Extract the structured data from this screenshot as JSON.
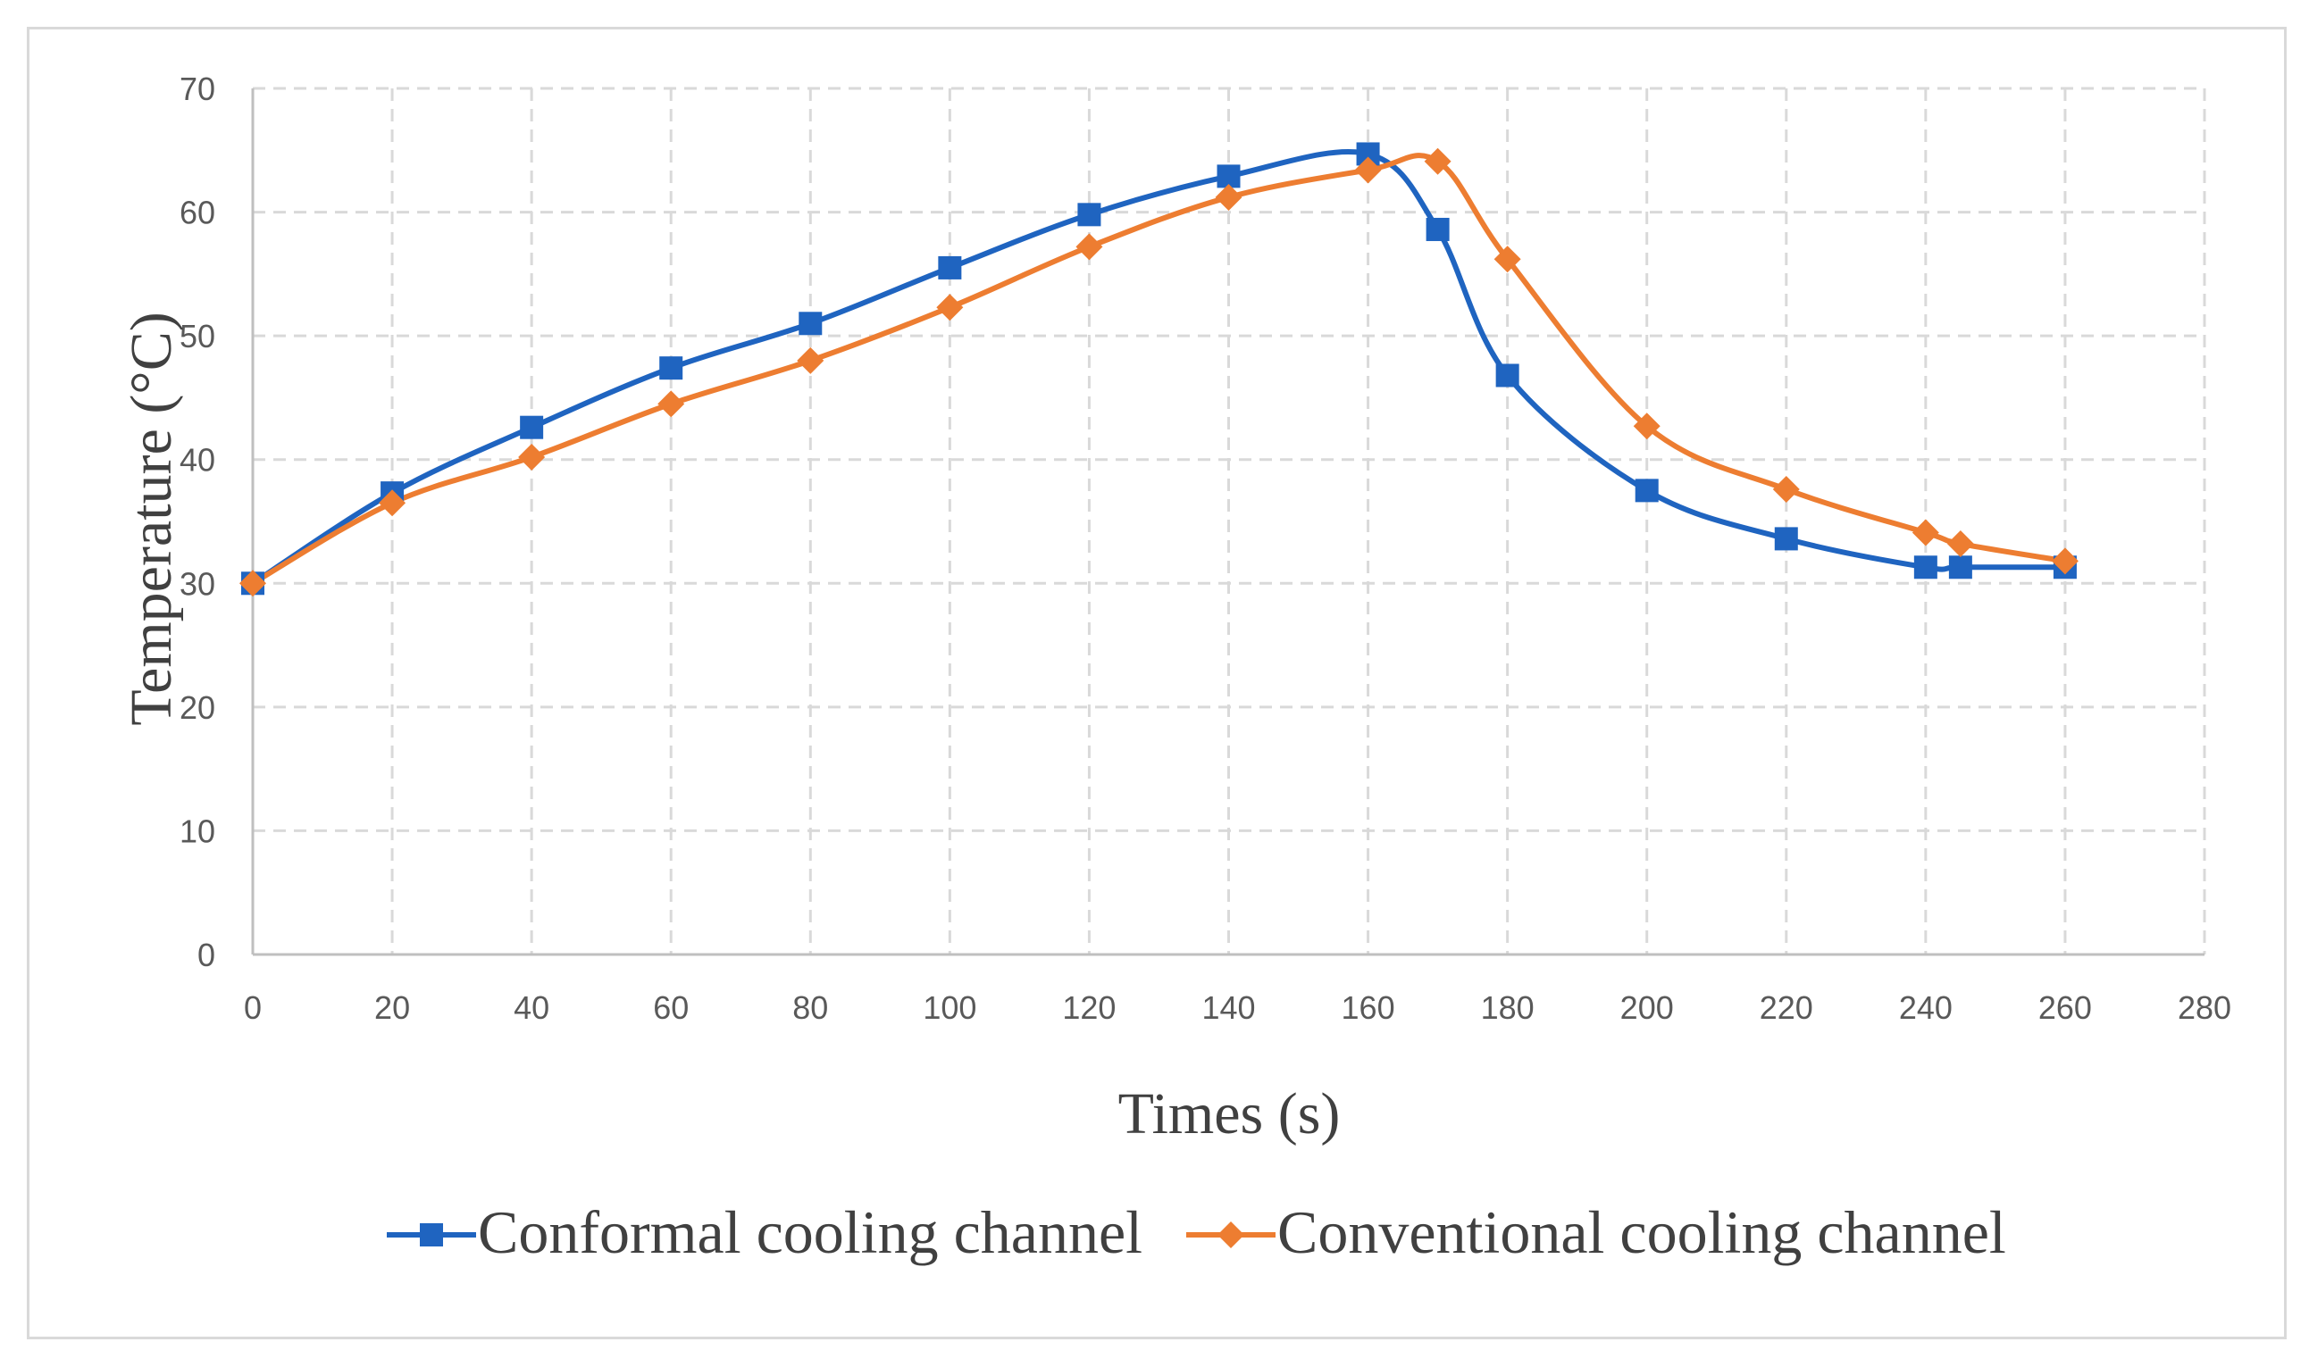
{
  "chart_data": {
    "type": "line",
    "title": "",
    "xlabel": "Times (s)",
    "ylabel": "Temperature (°C)",
    "xlim": [
      0,
      280
    ],
    "ylim": [
      0,
      70
    ],
    "xticks": [
      0,
      20,
      40,
      60,
      80,
      100,
      120,
      140,
      160,
      180,
      200,
      220,
      240,
      260,
      280
    ],
    "yticks": [
      0,
      10,
      20,
      30,
      40,
      50,
      60,
      70
    ],
    "grid": true,
    "legend_position": "bottom",
    "series": [
      {
        "name": "Conformal cooling channel",
        "color": "#1f64c0",
        "marker": "square",
        "x": [
          0,
          20,
          40,
          60,
          80,
          100,
          120,
          140,
          160,
          170,
          180,
          200,
          220,
          240,
          245,
          260
        ],
        "values": [
          30,
          37.3,
          42.6,
          47.4,
          51,
          55.5,
          59.8,
          62.9,
          64.7,
          58.6,
          46.8,
          37.5,
          33.6,
          31.3,
          31.3,
          31.3
        ]
      },
      {
        "name": "Conventional cooling channel",
        "color": "#ed7d31",
        "marker": "diamond",
        "x": [
          0,
          20,
          40,
          60,
          80,
          100,
          120,
          140,
          160,
          170,
          180,
          200,
          220,
          240,
          245,
          260
        ],
        "values": [
          30,
          36.5,
          40.2,
          44.5,
          48,
          52.3,
          57.2,
          61.2,
          63.4,
          64.1,
          56.2,
          42.7,
          37.6,
          34.1,
          33.2,
          31.8
        ]
      }
    ]
  }
}
